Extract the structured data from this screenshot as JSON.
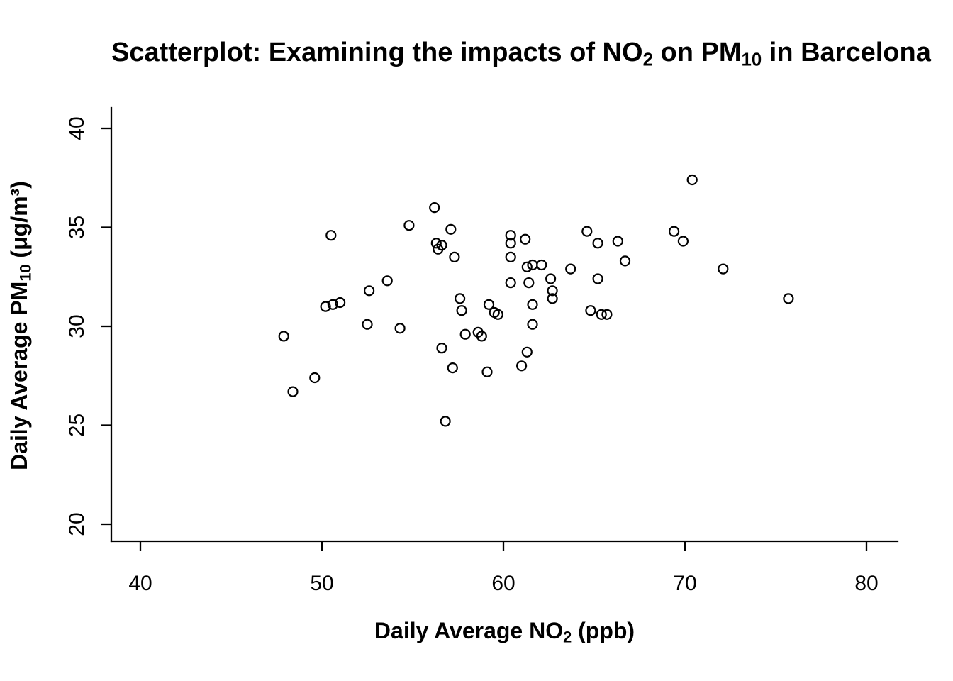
{
  "page": {
    "background_color": "#ffffff",
    "foreground_color": "#000000"
  },
  "chart_data": {
    "type": "scatter",
    "title": "Scatterplot: Examining the impacts of NO₂ on PM₁₀ in Barcelona",
    "title_parts": [
      {
        "t": "Scatterplot: Examining the impacts of NO"
      },
      {
        "t": "2",
        "sub": true
      },
      {
        "t": " on PM"
      },
      {
        "t": "10",
        "sub": true
      },
      {
        "t": " in Barcelona"
      }
    ],
    "xlabel": "Daily Average NO₂ (ppb)",
    "xlabel_parts": [
      {
        "t": "Daily Average NO"
      },
      {
        "t": "2",
        "sub": true
      },
      {
        "t": " (ppb)"
      }
    ],
    "ylabel": "Daily Average PM₁₀ (μg/m³)",
    "ylabel_parts": [
      {
        "t": "Daily Average PM"
      },
      {
        "t": "10",
        "sub": true
      },
      {
        "t": " (μg/m³)"
      }
    ],
    "x_ticks": [
      40,
      50,
      60,
      70,
      80
    ],
    "y_ticks": [
      20,
      25,
      30,
      35,
      40
    ],
    "xlim": [
      40,
      81.7
    ],
    "ylim": [
      19.9,
      41.2
    ],
    "grid": false,
    "legend": null,
    "marker": {
      "shape": "open-circle",
      "color": "#000000",
      "fill": "none"
    },
    "series": [
      {
        "name": "daily-observations",
        "points_no2_pm10": [
          [
            47.9,
            29.5
          ],
          [
            48.4,
            26.7
          ],
          [
            49.6,
            27.4
          ],
          [
            50.2,
            31.0
          ],
          [
            50.5,
            34.6
          ],
          [
            50.6,
            31.1
          ],
          [
            51.0,
            31.2
          ],
          [
            52.5,
            30.1
          ],
          [
            52.6,
            31.8
          ],
          [
            53.6,
            32.3
          ],
          [
            54.3,
            29.9
          ],
          [
            54.8,
            35.1
          ],
          [
            56.2,
            36.0
          ],
          [
            56.3,
            34.2
          ],
          [
            56.4,
            33.9
          ],
          [
            56.6,
            34.1
          ],
          [
            56.6,
            28.9
          ],
          [
            56.8,
            25.2
          ],
          [
            57.1,
            34.9
          ],
          [
            57.2,
            27.9
          ],
          [
            57.3,
            33.5
          ],
          [
            57.6,
            31.4
          ],
          [
            57.7,
            30.8
          ],
          [
            57.9,
            29.6
          ],
          [
            58.6,
            29.7
          ],
          [
            58.8,
            29.5
          ],
          [
            59.1,
            27.7
          ],
          [
            59.2,
            31.1
          ],
          [
            59.5,
            30.7
          ],
          [
            59.7,
            30.6
          ],
          [
            60.4,
            34.6
          ],
          [
            60.4,
            34.2
          ],
          [
            60.4,
            33.5
          ],
          [
            60.4,
            32.2
          ],
          [
            61.0,
            28.0
          ],
          [
            61.2,
            34.4
          ],
          [
            61.3,
            33.0
          ],
          [
            61.3,
            28.7
          ],
          [
            61.4,
            32.2
          ],
          [
            61.6,
            33.1
          ],
          [
            61.6,
            31.1
          ],
          [
            61.6,
            30.1
          ],
          [
            62.1,
            33.1
          ],
          [
            62.6,
            32.4
          ],
          [
            62.7,
            31.8
          ],
          [
            62.7,
            31.4
          ],
          [
            63.7,
            32.9
          ],
          [
            64.6,
            34.8
          ],
          [
            64.8,
            30.8
          ],
          [
            65.2,
            34.2
          ],
          [
            65.2,
            32.4
          ],
          [
            65.4,
            30.6
          ],
          [
            65.7,
            30.6
          ],
          [
            66.3,
            34.3
          ],
          [
            66.7,
            33.3
          ],
          [
            69.4,
            34.8
          ],
          [
            69.9,
            34.3
          ],
          [
            70.4,
            37.4
          ],
          [
            72.1,
            32.9
          ],
          [
            75.7,
            31.4
          ]
        ]
      }
    ]
  }
}
